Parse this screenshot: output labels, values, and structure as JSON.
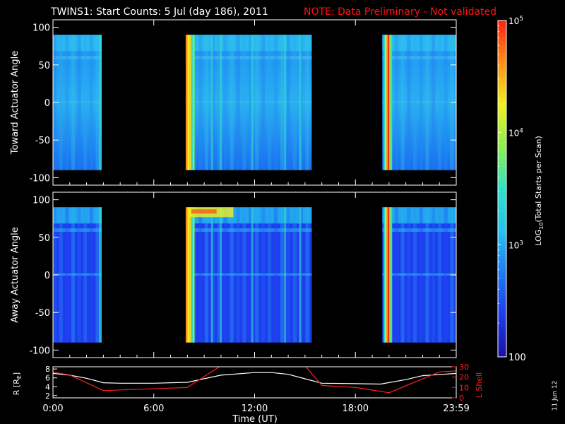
{
  "header": {
    "title": "TWINS1: Start Counts:  5 Jul (day 186), 2011",
    "note": "NOTE: Data Preliminary - Not validated"
  },
  "footer": {
    "date_stamp": "11 Jun 12"
  },
  "colors": {
    "background": "#000000",
    "axis": "#ffffff",
    "note": "#ff1010",
    "r_line": "#ffffff",
    "l_shell_line": "#ff2020",
    "colormap": [
      "#1a10a0",
      "#1e3cf0",
      "#1d7cf5",
      "#22c3f2",
      "#2ee0c8",
      "#8cf04a",
      "#f0f020",
      "#ff9010",
      "#ff2010"
    ]
  },
  "chart_data": [
    {
      "type": "heatmap",
      "panel": "top",
      "ylabel": "Toward Actuator Angle",
      "ylim": [
        -110,
        110
      ],
      "y_ticks": [
        "100",
        "50",
        "0",
        "-50",
        "-100"
      ],
      "y_tick_values": [
        100,
        50,
        0,
        -50,
        -100
      ],
      "angle_range": [
        -90,
        90
      ],
      "x_range_hours": [
        0,
        24
      ],
      "data_blocks_hours": [
        [
          0,
          2.9
        ],
        [
          7.9,
          15.4
        ],
        [
          19.6,
          24
        ]
      ],
      "colormap_note": "log scale, background mostly 10^3 level"
    },
    {
      "type": "heatmap",
      "panel": "middle",
      "ylabel": "Away Actuator Angle",
      "ylim": [
        -110,
        110
      ],
      "y_ticks": [
        "100",
        "50",
        "0",
        "-50",
        "-100"
      ],
      "y_tick_values": [
        100,
        50,
        0,
        -50,
        -100
      ],
      "angle_range": [
        -90,
        90
      ],
      "x_range_hours": [
        0,
        24
      ],
      "data_blocks_hours": [
        [
          0,
          2.9
        ],
        [
          7.9,
          15.4
        ],
        [
          19.6,
          24
        ]
      ]
    },
    {
      "type": "line",
      "panel": "bottom",
      "ylabel_left": "R [R",
      "ylabel_left_sub": "E",
      "ylabel_left_close": "]",
      "ylabel_right": "L Shell",
      "xlabel": "Time (UT)",
      "x_ticks": [
        "0:00",
        "6:00",
        "12:00",
        "18:00",
        "23:59"
      ],
      "x_tick_hours": [
        0,
        6,
        12,
        18,
        24
      ],
      "y_left_ticks": [
        "8",
        "6",
        "4",
        "2"
      ],
      "y_left_tick_values": [
        8,
        6,
        4,
        2
      ],
      "y_left_range": [
        1.5,
        8.5
      ],
      "y_right_ticks": [
        "30",
        "20",
        "10",
        "0"
      ],
      "y_right_tick_values": [
        30,
        20,
        10,
        0
      ],
      "y_right_range": [
        0,
        30
      ],
      "series": [
        {
          "name": "R [RE]",
          "axis": "left",
          "x": [
            0,
            1,
            2,
            3,
            4,
            6,
            8,
            10,
            12,
            13,
            14,
            15,
            16,
            18,
            19.5,
            21,
            22,
            24
          ],
          "y": [
            7.0,
            6.6,
            5.9,
            4.9,
            4.8,
            4.8,
            5.0,
            6.6,
            7.2,
            7.2,
            6.8,
            5.8,
            4.8,
            4.7,
            4.6,
            5.6,
            6.5,
            7.0
          ]
        },
        {
          "name": "L Shell",
          "axis": "right",
          "x": [
            0,
            1,
            3,
            8,
            10,
            15,
            16,
            18,
            20,
            23,
            24
          ],
          "y": [
            25,
            22,
            7,
            10,
            31,
            31,
            12,
            10,
            5,
            25,
            26
          ]
        }
      ]
    },
    {
      "type": "colorbar",
      "label": "LOG",
      "label_sub": "10",
      "label_rest": "(Total Starts per Scan)",
      "ticks": [
        {
          "base": "10",
          "exp": "5",
          "value": 100000
        },
        {
          "base": "10",
          "exp": "4",
          "value": 10000
        },
        {
          "base": "10",
          "exp": "3",
          "value": 1000
        },
        {
          "base": "100",
          "exp": "",
          "value": 100
        }
      ],
      "range": [
        100,
        100000
      ]
    }
  ]
}
